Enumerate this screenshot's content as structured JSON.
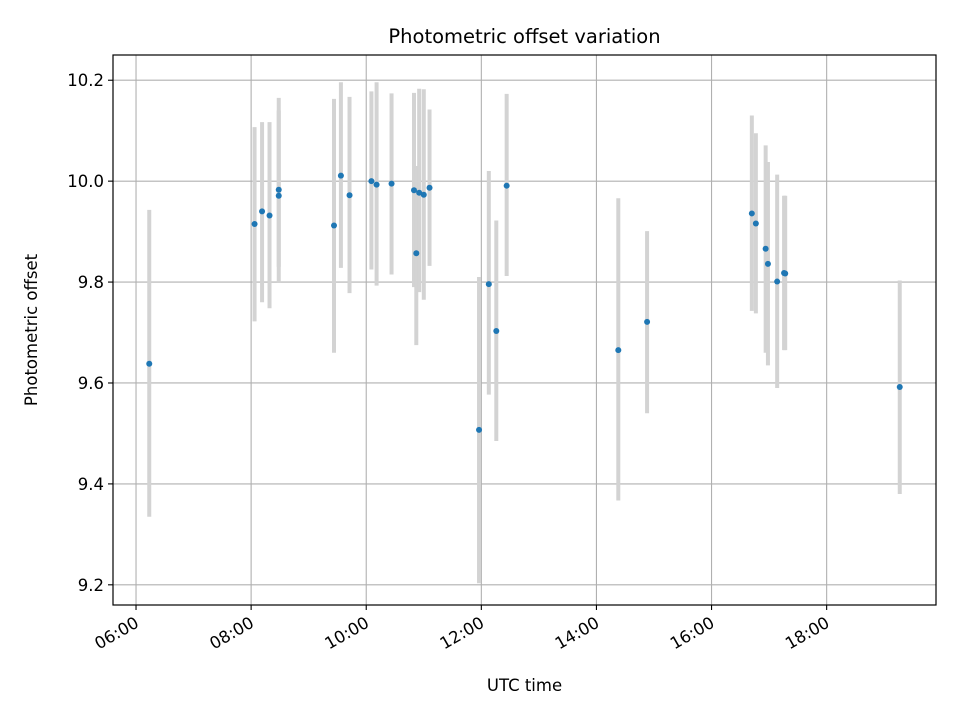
{
  "chart_data": {
    "type": "scatter",
    "title": "Photometric offset variation",
    "xlabel": "UTC time",
    "ylabel": "Photometric offset",
    "x_unit": "hours UTC",
    "x_ticks": [
      "06:00",
      "08:00",
      "10:00",
      "12:00",
      "14:00",
      "16:00",
      "18:00"
    ],
    "x_tick_values": [
      6,
      8,
      10,
      12,
      14,
      16,
      18
    ],
    "y_ticks": [
      "9.2",
      "9.4",
      "9.6",
      "9.8",
      "10.0",
      "10.2"
    ],
    "y_tick_values": [
      9.2,
      9.4,
      9.6,
      9.8,
      10.0,
      10.2
    ],
    "xlim": [
      5.6,
      19.9
    ],
    "ylim": [
      9.16,
      10.25
    ],
    "grid": true,
    "colors": {
      "point": "#1f77b4",
      "errorbar": "#d3d3d3",
      "grid": "#b0b0b0"
    },
    "series": [
      {
        "points": [
          {
            "x": 6.23,
            "y": 9.638,
            "lo": 9.335,
            "hi": 9.943
          },
          {
            "x": 8.06,
            "y": 9.915,
            "lo": 9.722,
            "hi": 10.107
          },
          {
            "x": 8.19,
            "y": 9.94,
            "lo": 9.76,
            "hi": 10.117
          },
          {
            "x": 8.32,
            "y": 9.932,
            "lo": 9.748,
            "hi": 10.117
          },
          {
            "x": 8.48,
            "y": 9.983,
            "lo": 9.83,
            "hi": 10.165
          },
          {
            "x": 8.48,
            "y": 9.971,
            "lo": 9.8,
            "hi": 10.14
          },
          {
            "x": 9.44,
            "y": 9.912,
            "lo": 9.66,
            "hi": 10.163
          },
          {
            "x": 9.56,
            "y": 10.011,
            "lo": 9.828,
            "hi": 10.196
          },
          {
            "x": 9.71,
            "y": 9.972,
            "lo": 9.778,
            "hi": 10.167
          },
          {
            "x": 10.09,
            "y": 10.0,
            "lo": 9.825,
            "hi": 10.178
          },
          {
            "x": 10.18,
            "y": 9.993,
            "lo": 9.793,
            "hi": 10.196
          },
          {
            "x": 10.44,
            "y": 9.995,
            "lo": 9.815,
            "hi": 10.174
          },
          {
            "x": 10.83,
            "y": 9.982,
            "lo": 9.79,
            "hi": 10.175
          },
          {
            "x": 10.87,
            "y": 9.857,
            "lo": 9.675,
            "hi": 10.03
          },
          {
            "x": 10.92,
            "y": 9.977,
            "lo": 9.78,
            "hi": 10.183
          },
          {
            "x": 11.0,
            "y": 9.973,
            "lo": 9.765,
            "hi": 10.182
          },
          {
            "x": 11.1,
            "y": 9.987,
            "lo": 9.832,
            "hi": 10.142
          },
          {
            "x": 11.96,
            "y": 9.507,
            "lo": 9.203,
            "hi": 9.81
          },
          {
            "x": 12.13,
            "y": 9.796,
            "lo": 9.577,
            "hi": 10.02
          },
          {
            "x": 12.26,
            "y": 9.703,
            "lo": 9.485,
            "hi": 9.922
          },
          {
            "x": 12.44,
            "y": 9.991,
            "lo": 9.812,
            "hi": 10.173
          },
          {
            "x": 14.38,
            "y": 9.665,
            "lo": 9.367,
            "hi": 9.966
          },
          {
            "x": 14.88,
            "y": 9.721,
            "lo": 9.54,
            "hi": 9.901
          },
          {
            "x": 16.7,
            "y": 9.936,
            "lo": 9.743,
            "hi": 10.13
          },
          {
            "x": 16.77,
            "y": 9.916,
            "lo": 9.738,
            "hi": 10.095
          },
          {
            "x": 16.94,
            "y": 9.866,
            "lo": 9.66,
            "hi": 10.071
          },
          {
            "x": 16.98,
            "y": 9.836,
            "lo": 9.635,
            "hi": 10.038
          },
          {
            "x": 17.14,
            "y": 9.801,
            "lo": 9.59,
            "hi": 10.013
          },
          {
            "x": 17.28,
            "y": 9.817,
            "lo": 9.665,
            "hi": 9.971
          },
          {
            "x": 17.26,
            "y": 9.818,
            "lo": 9.665,
            "hi": 9.971
          },
          {
            "x": 19.27,
            "y": 9.592,
            "lo": 9.38,
            "hi": 9.803
          }
        ]
      }
    ]
  }
}
